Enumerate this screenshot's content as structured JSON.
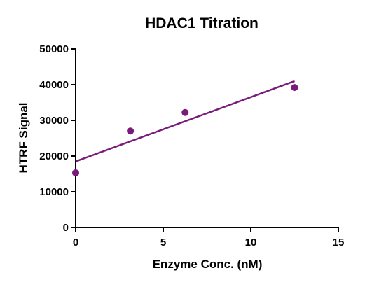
{
  "chart_data": {
    "type": "scatter",
    "title": "HDAC1 Titration",
    "xlabel": "Enzyme Conc. (nM)",
    "ylabel": "HTRF Signal",
    "xlim": [
      0,
      15
    ],
    "ylim": [
      0,
      50000
    ],
    "x_ticks": [
      "0",
      "5",
      "10",
      "15"
    ],
    "y_ticks": [
      "0",
      "10000",
      "20000",
      "30000",
      "40000",
      "50000"
    ],
    "grid": false,
    "legend": "none",
    "series": [
      {
        "points": [
          {
            "x": 0,
            "y": 15300
          },
          {
            "x": 3.125,
            "y": 27000
          },
          {
            "x": 6.25,
            "y": 32200
          },
          {
            "x": 12.5,
            "y": 39200
          }
        ],
        "color": "#7a1a7a"
      }
    ],
    "fit_line": {
      "x": [
        0,
        12.5
      ],
      "y": [
        18500,
        41000
      ],
      "color": "#7a1a7a"
    }
  }
}
